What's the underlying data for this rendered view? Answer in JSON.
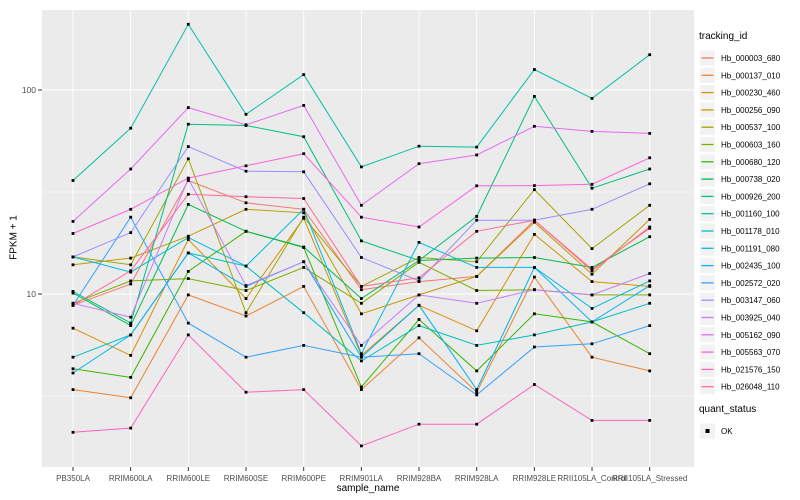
{
  "chart_data": {
    "type": "line",
    "title": "",
    "xlabel": "sample_name",
    "ylabel": "FPKM + 1",
    "y_scale": "log10",
    "ylim": [
      1.4,
      246
    ],
    "y_ticks": [
      10,
      100
    ],
    "y_minor_ticks": [
      3.162,
      31.623
    ],
    "grid": true,
    "legend_position": "right",
    "point_marker": "square",
    "point_color": "#000000",
    "categories": [
      "PB350LA",
      "RRIM600LA",
      "RRIM600LE",
      "RRIM600SE",
      "RRIM600PE",
      "RRIM901LA",
      "RRIM928BA",
      "RRIM928LA",
      "RRIM928LE",
      "RRII105LA_Control",
      "RRII105LA_Stressed"
    ],
    "series": [
      {
        "name": "Hb_000003_680",
        "color": "#F8766D",
        "values": [
          8.8,
          11.2,
          36,
          28,
          26,
          10.5,
          11.5,
          12.2,
          23,
          13.2,
          21
        ]
      },
      {
        "name": "Hb_000137_010",
        "color": "#EA8331",
        "values": [
          3.4,
          3.1,
          9.9,
          7.8,
          10.9,
          3.4,
          6.1,
          3.3,
          12.1,
          4.9,
          4.2
        ]
      },
      {
        "name": "Hb_000230_460",
        "color": "#D89000",
        "values": [
          6.8,
          5.0,
          18.5,
          9.5,
          23.5,
          5.0,
          8.8,
          6.6,
          19.6,
          11.5,
          10.9
        ]
      },
      {
        "name": "Hb_000256_090",
        "color": "#C09B00",
        "values": [
          13.9,
          15.0,
          19.2,
          26,
          25,
          8.0,
          9.9,
          12.2,
          22.5,
          12.5,
          23.2
        ]
      },
      {
        "name": "Hb_000537_100",
        "color": "#A3A500",
        "values": [
          15.2,
          13.9,
          46,
          8.1,
          23.8,
          10.9,
          15.1,
          14.4,
          32.5,
          16.7,
          27.2
        ]
      },
      {
        "name": "Hb_000603_160",
        "color": "#7CAE00",
        "values": [
          9.0,
          11.6,
          11.9,
          10.4,
          13.5,
          9.0,
          14.3,
          10.4,
          10.5,
          9.9,
          9.9
        ]
      },
      {
        "name": "Hb_000680_120",
        "color": "#39B600",
        "values": [
          4.3,
          3.9,
          12.9,
          20.3,
          16.9,
          3.5,
          7.5,
          4.2,
          8.0,
          7.3,
          5.1
        ]
      },
      {
        "name": "Hb_000738_020",
        "color": "#00BB4E",
        "values": [
          10.1,
          7.0,
          27.5,
          20.3,
          17.0,
          9.5,
          14.6,
          15.0,
          15.1,
          13.5,
          19.1
        ]
      },
      {
        "name": "Hb_000926_200",
        "color": "#00BF7D",
        "values": [
          10.3,
          7.2,
          68,
          67,
          59,
          18.2,
          14.6,
          24,
          93,
          33,
          41
        ]
      },
      {
        "name": "Hb_001160_100",
        "color": "#00C1A3",
        "values": [
          36,
          65,
          210,
          76,
          119,
          42,
          53,
          52.5,
          126,
          91,
          149
        ]
      },
      {
        "name": "Hb_001178_010",
        "color": "#00BFC4",
        "values": [
          4.9,
          6.3,
          15.9,
          13.7,
          8.1,
          4.7,
          7.0,
          5.6,
          6.3,
          7.3,
          9.0
        ]
      },
      {
        "name": "Hb_001191_080",
        "color": "#00BAE0",
        "values": [
          15.2,
          12.8,
          18.9,
          13.7,
          26,
          5.1,
          17.9,
          13.5,
          13.5,
          8.5,
          11.6
        ]
      },
      {
        "name": "Hb_002435_100",
        "color": "#00B0F6",
        "values": [
          4.1,
          6.3,
          15.9,
          10.9,
          14.4,
          4.9,
          8.8,
          3.4,
          13.5,
          7.3,
          11.0
        ]
      },
      {
        "name": "Hb_002572_020",
        "color": "#35A2FF",
        "values": [
          8.8,
          23.8,
          7.2,
          4.9,
          5.6,
          4.9,
          5.1,
          3.2,
          5.5,
          5.7,
          7.0
        ]
      },
      {
        "name": "Hb_003147_060",
        "color": "#9590FF",
        "values": [
          15.2,
          20,
          52.8,
          40,
          39.7,
          15.1,
          11.6,
          23,
          23,
          26,
          34.7
        ]
      },
      {
        "name": "Hb_003925_040",
        "color": "#C77CFF",
        "values": [
          9.0,
          7.7,
          36.7,
          11,
          14.4,
          5.6,
          9.9,
          9.0,
          10.5,
          9.9,
          12.6
        ]
      },
      {
        "name": "Hb_005162_090",
        "color": "#E76BF3",
        "values": [
          22.7,
          41,
          82,
          67.5,
          84,
          27.2,
          43.5,
          48,
          66.4,
          62.7,
          61.3
        ]
      },
      {
        "name": "Hb_005563_070",
        "color": "#FA62DB",
        "values": [
          19.8,
          26,
          37,
          42.5,
          48.7,
          23.8,
          21.3,
          33.9,
          34,
          34.5,
          46.5
        ]
      },
      {
        "name": "Hb_021576_150",
        "color": "#FF62BC",
        "values": [
          2.1,
          2.2,
          6.3,
          3.3,
          3.4,
          1.8,
          2.3,
          2.3,
          3.6,
          2.4,
          2.4
        ]
      },
      {
        "name": "Hb_026048_110",
        "color": "#FF6A98",
        "values": [
          8.8,
          13,
          30.8,
          30,
          29.4,
          10.9,
          12,
          20.3,
          23,
          13,
          21.3
        ]
      }
    ],
    "legend": {
      "color_title": "tracking_id",
      "shape_title": "quant_status",
      "shape_entries": [
        {
          "label": "OK",
          "marker": "square",
          "color": "#000000"
        }
      ]
    }
  },
  "style": {
    "panel_bg": "#EBEBEB",
    "grid_color": "#FFFFFF",
    "legend_key_bg": "#F2F2F2",
    "tick_text_color": "#4D4D4D",
    "axis_tick_color": "#333333"
  }
}
